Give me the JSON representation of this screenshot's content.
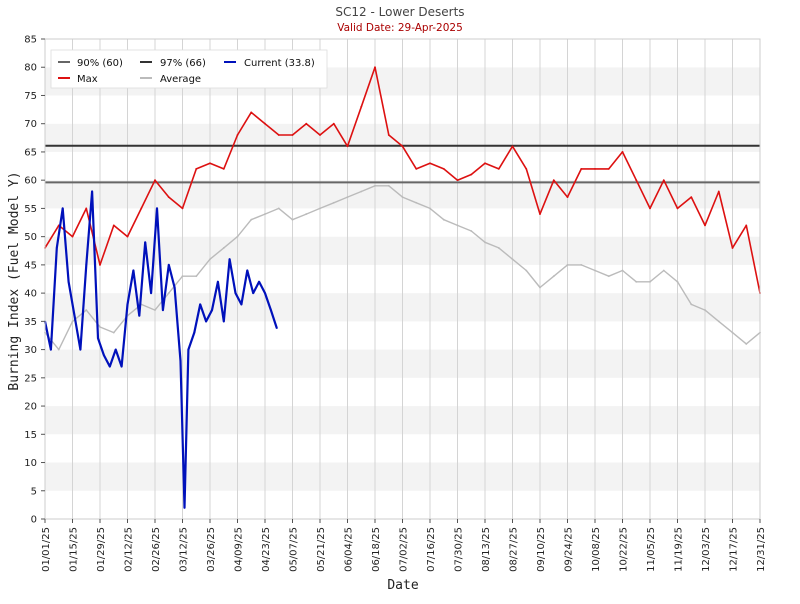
{
  "chart_data": {
    "type": "line",
    "title": "SC12 - Lower Deserts",
    "subtitle": "Valid Date: 29-Apr-2025",
    "xlabel": "Date",
    "ylabel": "Burning Index (Fuel Model Y)",
    "ylim": [
      0,
      85
    ],
    "yticks": [
      0,
      5,
      10,
      15,
      20,
      25,
      30,
      35,
      40,
      45,
      50,
      55,
      60,
      65,
      70,
      75,
      80,
      85
    ],
    "xlim": [
      "01/01/25",
      "12/31/25"
    ],
    "xtick_labels": [
      "01/01/25",
      "01/15/25",
      "01/29/25",
      "02/12/25",
      "02/26/25",
      "03/12/25",
      "03/26/25",
      "04/09/25",
      "04/23/25",
      "05/07/25",
      "05/21/25",
      "06/04/25",
      "06/18/25",
      "07/02/25",
      "07/16/25",
      "07/30/25",
      "08/13/25",
      "08/27/25",
      "09/10/25",
      "09/24/25",
      "10/08/25",
      "10/22/25",
      "11/05/25",
      "11/19/25",
      "12/03/25",
      "12/17/25",
      "12/31/25"
    ],
    "grid": "horizontal bands",
    "legend_position": "top-left",
    "thresholds": [
      {
        "name": "90% (60)",
        "value": 59.6,
        "color": "#666666"
      },
      {
        "name": "97% (66)",
        "value": 66.1,
        "color": "#333333"
      }
    ],
    "series": [
      {
        "name": "Max",
        "color": "#dd1111",
        "x": [
          "01/01/25",
          "01/08/25",
          "01/15/25",
          "01/22/25",
          "01/29/25",
          "02/05/25",
          "02/12/25",
          "02/19/25",
          "02/26/25",
          "03/05/25",
          "03/12/25",
          "03/19/25",
          "03/26/25",
          "04/02/25",
          "04/09/25",
          "04/16/25",
          "04/23/25",
          "04/30/25",
          "05/07/25",
          "05/14/25",
          "05/21/25",
          "05/28/25",
          "06/04/25",
          "06/11/25",
          "06/18/25",
          "06/25/25",
          "07/02/25",
          "07/09/25",
          "07/16/25",
          "07/23/25",
          "07/30/25",
          "08/06/25",
          "08/13/25",
          "08/20/25",
          "08/27/25",
          "09/03/25",
          "09/10/25",
          "09/17/25",
          "09/24/25",
          "10/01/25",
          "10/08/25",
          "10/15/25",
          "10/22/25",
          "10/29/25",
          "11/05/25",
          "11/12/25",
          "11/19/25",
          "11/26/25",
          "12/03/25",
          "12/10/25",
          "12/17/25",
          "12/24/25",
          "12/31/25"
        ],
        "values": [
          48,
          52,
          50,
          55,
          45,
          52,
          50,
          55,
          60,
          57,
          55,
          62,
          63,
          62,
          68,
          72,
          70,
          68,
          68,
          70,
          68,
          70,
          66,
          73,
          80,
          68,
          66,
          62,
          63,
          62,
          60,
          61,
          63,
          62,
          66,
          62,
          54,
          60,
          57,
          62,
          62,
          62,
          65,
          60,
          55,
          60,
          55,
          57,
          52,
          58,
          48,
          52,
          40
        ]
      },
      {
        "name": "Average",
        "color": "#bbbbbb",
        "x": [
          "01/01/25",
          "01/08/25",
          "01/15/25",
          "01/22/25",
          "01/29/25",
          "02/05/25",
          "02/12/25",
          "02/19/25",
          "02/26/25",
          "03/05/25",
          "03/12/25",
          "03/19/25",
          "03/26/25",
          "04/02/25",
          "04/09/25",
          "04/16/25",
          "04/23/25",
          "04/30/25",
          "05/07/25",
          "05/14/25",
          "05/21/25",
          "05/28/25",
          "06/04/25",
          "06/11/25",
          "06/18/25",
          "06/25/25",
          "07/02/25",
          "07/09/25",
          "07/16/25",
          "07/23/25",
          "07/30/25",
          "08/06/25",
          "08/13/25",
          "08/20/25",
          "08/27/25",
          "09/03/25",
          "09/10/25",
          "09/17/25",
          "09/24/25",
          "10/01/25",
          "10/08/25",
          "10/15/25",
          "10/22/25",
          "10/29/25",
          "11/05/25",
          "11/12/25",
          "11/19/25",
          "11/26/25",
          "12/03/25",
          "12/10/25",
          "12/17/25",
          "12/24/25",
          "12/31/25"
        ],
        "values": [
          33,
          30,
          35,
          37,
          34,
          33,
          36,
          38,
          37,
          40,
          43,
          43,
          46,
          48,
          50,
          53,
          54,
          55,
          53,
          54,
          55,
          56,
          57,
          58,
          59,
          59,
          57,
          56,
          55,
          53,
          52,
          51,
          49,
          48,
          46,
          44,
          41,
          43,
          45,
          45,
          44,
          43,
          44,
          42,
          42,
          44,
          42,
          38,
          37,
          35,
          33,
          31,
          33
        ]
      },
      {
        "name": "Current (33.8)",
        "color": "#0011bb",
        "x": [
          "01/01/25",
          "01/04/25",
          "01/07/25",
          "01/10/25",
          "01/13/25",
          "01/16/25",
          "01/19/25",
          "01/22/25",
          "01/25/25",
          "01/28/25",
          "01/31/25",
          "02/03/25",
          "02/06/25",
          "02/09/25",
          "02/12/25",
          "02/15/25",
          "02/18/25",
          "02/21/25",
          "02/24/25",
          "02/27/25",
          "03/02/25",
          "03/05/25",
          "03/08/25",
          "03/11/25",
          "03/13/25",
          "03/15/25",
          "03/18/25",
          "03/21/25",
          "03/24/25",
          "03/27/25",
          "03/30/25",
          "04/02/25",
          "04/05/25",
          "04/08/25",
          "04/11/25",
          "04/14/25",
          "04/17/25",
          "04/20/25",
          "04/23/25",
          "04/26/25",
          "04/29/25"
        ],
        "values": [
          35,
          30,
          48,
          55,
          42,
          36,
          30,
          45,
          58,
          32,
          29,
          27,
          30,
          27,
          38,
          44,
          36,
          49,
          40,
          55,
          37,
          45,
          41,
          28,
          2,
          30,
          33,
          38,
          35,
          37,
          42,
          35,
          46,
          40,
          38,
          44,
          40,
          42,
          40,
          37,
          33.8
        ]
      }
    ]
  }
}
